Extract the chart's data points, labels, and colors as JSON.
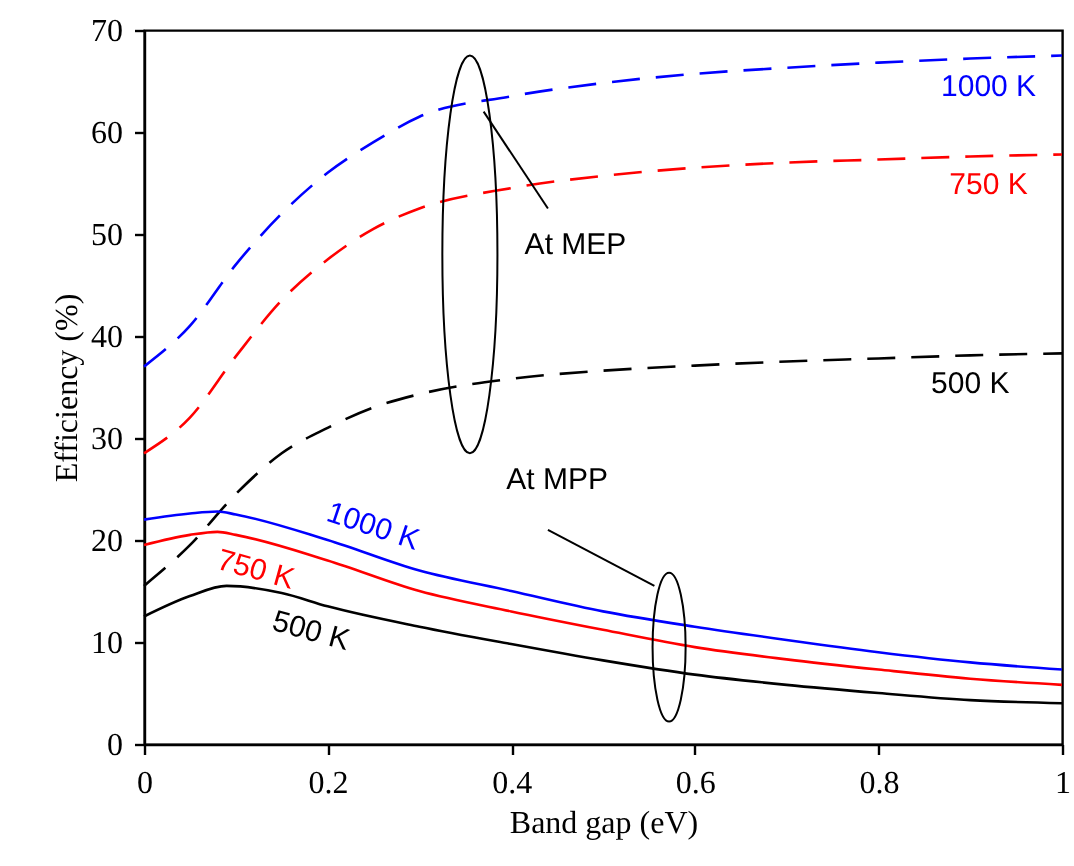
{
  "chart_data": {
    "type": "line",
    "xlabel": "Band gap (eV)",
    "ylabel": "Efficiency (%)",
    "xlim": [
      0,
      1
    ],
    "xticks": [
      0,
      0.2,
      0.4,
      0.6,
      0.8,
      1
    ],
    "ylim": [
      0,
      70
    ],
    "yticks": [
      0,
      10,
      20,
      30,
      40,
      50,
      60,
      70
    ],
    "grid": false,
    "series": [
      {
        "color": "#0000ff",
        "line_style": "dashed",
        "x": [
          0,
          0.05,
          0.1,
          0.15,
          0.2,
          0.25,
          0.3,
          0.4,
          0.5,
          0.6,
          0.7,
          0.8,
          0.9,
          1.0
        ],
        "values": [
          37,
          41,
          47,
          52,
          56,
          59,
          61.5,
          63.5,
          64.8,
          65.7,
          66.3,
          66.8,
          67.2,
          67.5
        ]
      },
      {
        "color": "#ff0000",
        "line_style": "dashed",
        "x": [
          0,
          0.05,
          0.1,
          0.15,
          0.2,
          0.25,
          0.3,
          0.4,
          0.5,
          0.6,
          0.7,
          0.8,
          0.9,
          1.0
        ],
        "values": [
          28.5,
          32,
          38,
          43.5,
          47.5,
          50.5,
          52.5,
          54.5,
          55.7,
          56.5,
          57,
          57.3,
          57.6,
          57.8
        ]
      },
      {
        "color": "#000000",
        "line_style": "dashed",
        "x": [
          0,
          0.05,
          0.1,
          0.15,
          0.2,
          0.25,
          0.3,
          0.4,
          0.5,
          0.6,
          0.7,
          0.8,
          0.9,
          1.0
        ],
        "values": [
          15.5,
          19.5,
          24.5,
          28.5,
          31,
          33,
          34.3,
          35.8,
          36.6,
          37.1,
          37.5,
          37.8,
          38.1,
          38.3
        ]
      },
      {
        "color": "#0000ff",
        "line_style": "solid",
        "x": [
          0,
          0.05,
          0.08,
          0.1,
          0.2,
          0.3,
          0.4,
          0.5,
          0.6,
          0.7,
          0.8,
          0.9,
          1.0
        ],
        "values": [
          22,
          22.6,
          22.8,
          22.5,
          20,
          17,
          15,
          13,
          11.5,
          10.2,
          9,
          8,
          7.3
        ]
      },
      {
        "color": "#ff0000",
        "line_style": "solid",
        "x": [
          0,
          0.05,
          0.08,
          0.1,
          0.2,
          0.3,
          0.4,
          0.5,
          0.6,
          0.7,
          0.8,
          0.9,
          1.0
        ],
        "values": [
          19.5,
          20.5,
          20.8,
          20.5,
          18,
          15,
          13,
          11.2,
          9.5,
          8.3,
          7.3,
          6.4,
          5.8
        ]
      },
      {
        "color": "#000000",
        "line_style": "solid",
        "x": [
          0,
          0.05,
          0.09,
          0.15,
          0.2,
          0.3,
          0.4,
          0.5,
          0.6,
          0.7,
          0.8,
          0.9,
          1.0
        ],
        "values": [
          12.5,
          14.5,
          15.5,
          14.8,
          13.5,
          11.5,
          9.8,
          8.2,
          6.8,
          5.8,
          5,
          4.3,
          4
        ]
      }
    ],
    "annotations": [
      {
        "text": "1000 K",
        "x": 0.92,
        "y": 67.3
      },
      {
        "text": "750 K",
        "x": 0.92,
        "y": 57.6
      },
      {
        "text": "500 K",
        "x": 0.9,
        "y": 38.1
      },
      "At MEP",
      "At MPP",
      {
        "text": "1000 K",
        "x": 0.24,
        "y": 18.8
      },
      {
        "text": "750 K",
        "x": 0.13,
        "y": 19.8
      },
      {
        "text": "500 K",
        "x": 0.19,
        "y": 13.8
      }
    ]
  }
}
